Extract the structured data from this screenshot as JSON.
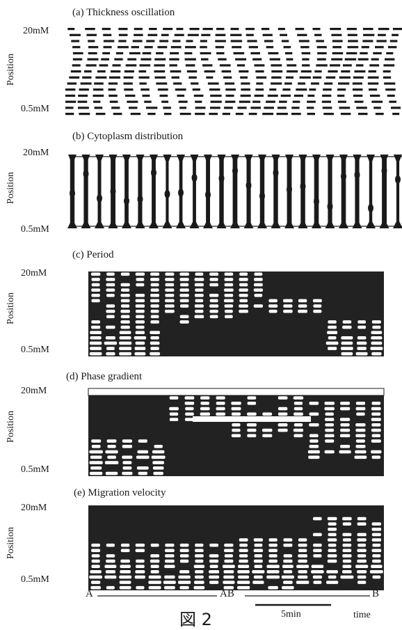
{
  "figure": {
    "caption": "図 2",
    "panels": [
      {
        "letter": "(a)",
        "title": "Thickness oscillation",
        "ylabel": "Position",
        "ytop": "20mM",
        "ybottom": "0.5mM"
      },
      {
        "letter": "(b)",
        "title": "Cytoplasm distribution",
        "ylabel": "Position",
        "ytop": "20mM",
        "ybottom": "0.5mM"
      },
      {
        "letter": "(c)",
        "title": "Period",
        "ylabel": "Position",
        "ytop": "20mM",
        "ybottom": "0.5mM"
      },
      {
        "letter": "(d)",
        "title": "Phase gradient",
        "ylabel": "Position",
        "ytop": "20mM",
        "ybottom": "0.5mM"
      },
      {
        "letter": "(e)",
        "title": "Migration velocity",
        "ylabel": "Position",
        "ytop": "20mM",
        "ybottom": "0.5mM"
      }
    ],
    "axis": {
      "markers": [
        "A",
        "AB",
        "B"
      ],
      "scale_label": "5min",
      "time_label": "time"
    }
  }
}
